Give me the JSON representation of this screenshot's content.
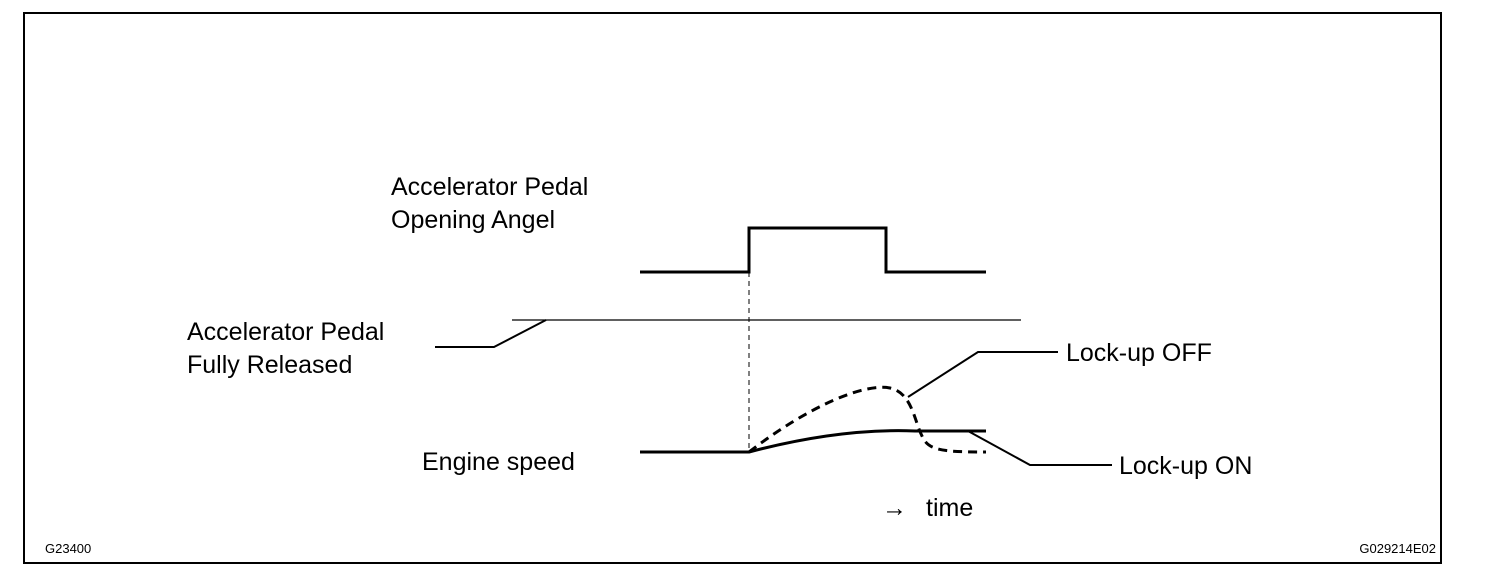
{
  "labels": {
    "pedal_opening_line1": "Accelerator Pedal",
    "pedal_opening_line2": "Opening Angel",
    "pedal_released_line1": "Accelerator Pedal",
    "pedal_released_line2": "Fully Released",
    "engine_speed": "Engine speed",
    "lockup_off": "Lock-up OFF",
    "lockup_on": "Lock-up ON",
    "time_arrow": "→",
    "time": "time"
  },
  "figure_codes": {
    "left": "G23400",
    "right": "G029214E02"
  }
}
